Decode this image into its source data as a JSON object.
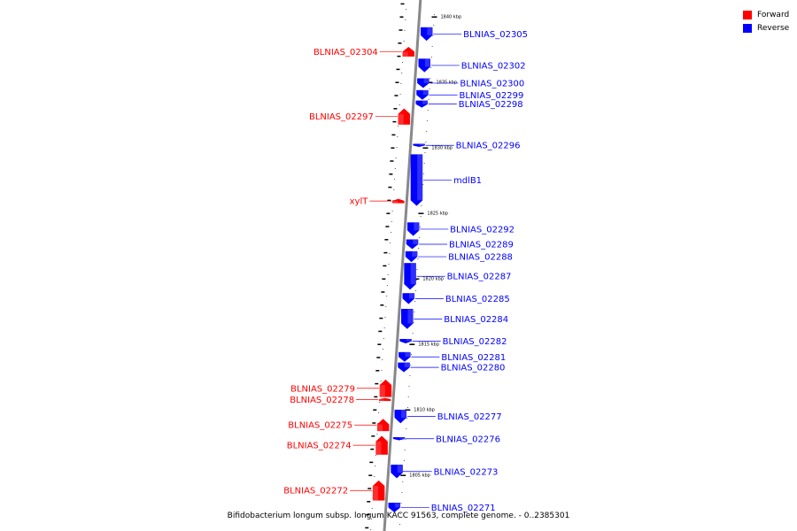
{
  "colors": {
    "forward": "#ff0000",
    "reverse": "#0000ff",
    "backbone": "#888888"
  },
  "legend": [
    {
      "label": "Forward",
      "color": "#ff0000"
    },
    {
      "label": "Reverse",
      "color": "#0000ff"
    }
  ],
  "caption": "Bifidobacterium longum subsp. longum KACC 91563, complete genome. - 0..2385301",
  "ticks_kbp": [
    1840,
    1835,
    1830,
    1825,
    1820,
    1815,
    1810,
    1805
  ],
  "genes": [
    {
      "name": "BLNIAS_02305",
      "strand": "reverse",
      "start": 1839.2,
      "end": 1838.2
    },
    {
      "name": "BLNIAS_02304",
      "strand": "forward",
      "start": 1837.0,
      "end": 1837.7
    },
    {
      "name": "BLNIAS_02302",
      "strand": "reverse",
      "start": 1836.8,
      "end": 1835.8
    },
    {
      "name": "BLNIAS_02300",
      "strand": "reverse",
      "start": 1835.3,
      "end": 1834.6
    },
    {
      "name": "BLNIAS_02299",
      "strand": "reverse",
      "start": 1834.4,
      "end": 1833.7
    },
    {
      "name": "BLNIAS_02298",
      "strand": "reverse",
      "start": 1833.6,
      "end": 1833.1
    },
    {
      "name": "BLNIAS_02297",
      "strand": "forward",
      "start": 1831.8,
      "end": 1833.0
    },
    {
      "name": "BLNIAS_02296",
      "strand": "reverse",
      "start": 1830.3,
      "end": 1830.1
    },
    {
      "name": "mdlB1",
      "strand": "reverse",
      "start": 1829.5,
      "end": 1825.6
    },
    {
      "name": "xylT",
      "strand": "forward",
      "start": 1825.8,
      "end": 1826.1
    },
    {
      "name": "BLNIAS_02292",
      "strand": "reverse",
      "start": 1824.3,
      "end": 1823.3
    },
    {
      "name": "BLNIAS_02289",
      "strand": "reverse",
      "start": 1823.0,
      "end": 1822.3
    },
    {
      "name": "BLNIAS_02288",
      "strand": "reverse",
      "start": 1822.1,
      "end": 1821.3
    },
    {
      "name": "BLNIAS_02287",
      "strand": "reverse",
      "start": 1821.2,
      "end": 1819.2
    },
    {
      "name": "BLNIAS_02285",
      "strand": "reverse",
      "start": 1818.9,
      "end": 1818.1
    },
    {
      "name": "BLNIAS_02284",
      "strand": "reverse",
      "start": 1817.7,
      "end": 1816.2
    },
    {
      "name": "BLNIAS_02282",
      "strand": "reverse",
      "start": 1815.4,
      "end": 1815.1
    },
    {
      "name": "BLNIAS_02281",
      "strand": "reverse",
      "start": 1814.4,
      "end": 1813.7
    },
    {
      "name": "BLNIAS_02280",
      "strand": "reverse",
      "start": 1813.6,
      "end": 1812.9
    },
    {
      "name": "BLNIAS_02279",
      "strand": "forward",
      "start": 1811.0,
      "end": 1812.3
    },
    {
      "name": "BLNIAS_02278",
      "strand": "forward",
      "start": 1810.7,
      "end": 1810.9
    },
    {
      "name": "BLNIAS_02277",
      "strand": "reverse",
      "start": 1810.0,
      "end": 1809.0
    },
    {
      "name": "BLNIAS_02276",
      "strand": "reverse",
      "start": 1807.9,
      "end": 1807.7
    },
    {
      "name": "BLNIAS_02275",
      "strand": "forward",
      "start": 1808.4,
      "end": 1809.3
    },
    {
      "name": "BLNIAS_02274",
      "strand": "forward",
      "start": 1806.6,
      "end": 1808.0
    },
    {
      "name": "BLNIAS_02273",
      "strand": "reverse",
      "start": 1805.8,
      "end": 1804.8
    },
    {
      "name": "BLNIAS_02272",
      "strand": "forward",
      "start": 1803.1,
      "end": 1804.6
    },
    {
      "name": "BLNIAS_02271",
      "strand": "reverse",
      "start": 1802.9,
      "end": 1802.2
    }
  ]
}
